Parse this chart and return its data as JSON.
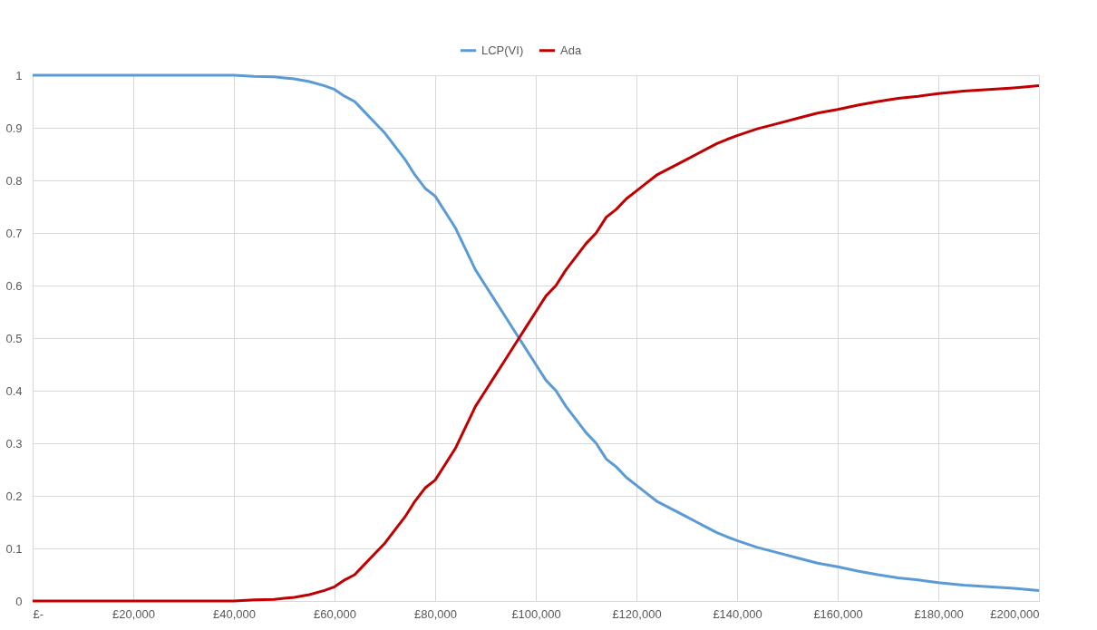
{
  "chart_data": {
    "type": "line",
    "x": [
      0,
      40000,
      44000,
      48000,
      50000,
      52000,
      55000,
      58000,
      60000,
      62000,
      64000,
      66000,
      68000,
      70000,
      72000,
      74000,
      76000,
      78000,
      80000,
      82000,
      84000,
      86000,
      88000,
      90000,
      92000,
      94000,
      96000,
      98000,
      100000,
      102000,
      104000,
      106000,
      108000,
      110000,
      112000,
      114000,
      116000,
      118000,
      120000,
      122000,
      124000,
      126000,
      128000,
      130000,
      132000,
      134000,
      136000,
      138000,
      140000,
      144000,
      148000,
      152000,
      156000,
      160000,
      164000,
      168000,
      172000,
      176000,
      180000,
      185000,
      190000,
      195000,
      200000
    ],
    "series": [
      {
        "name": "LCP(VI)",
        "color": "#5b9bd5",
        "values": [
          1,
          1,
          0.998,
          0.997,
          0.995,
          0.993,
          0.988,
          0.98,
          0.973,
          0.96,
          0.95,
          0.93,
          0.91,
          0.89,
          0.865,
          0.84,
          0.81,
          0.785,
          0.77,
          0.74,
          0.71,
          0.67,
          0.63,
          0.6,
          0.57,
          0.54,
          0.51,
          0.48,
          0.45,
          0.42,
          0.4,
          0.37,
          0.345,
          0.32,
          0.3,
          0.27,
          0.255,
          0.235,
          0.22,
          0.205,
          0.19,
          0.18,
          0.17,
          0.16,
          0.15,
          0.14,
          0.13,
          0.122,
          0.115,
          0.102,
          0.092,
          0.082,
          0.072,
          0.065,
          0.057,
          0.05,
          0.044,
          0.04,
          0.035,
          0.03,
          0.027,
          0.024,
          0.02
        ]
      },
      {
        "name": "Ada",
        "color": "#c00000",
        "values": [
          0,
          0,
          0.002,
          0.003,
          0.005,
          0.007,
          0.012,
          0.02,
          0.027,
          0.04,
          0.05,
          0.07,
          0.09,
          0.11,
          0.135,
          0.16,
          0.19,
          0.215,
          0.23,
          0.26,
          0.29,
          0.33,
          0.37,
          0.4,
          0.43,
          0.46,
          0.49,
          0.52,
          0.55,
          0.58,
          0.6,
          0.63,
          0.655,
          0.68,
          0.7,
          0.73,
          0.745,
          0.765,
          0.78,
          0.795,
          0.81,
          0.82,
          0.83,
          0.84,
          0.85,
          0.86,
          0.87,
          0.878,
          0.885,
          0.898,
          0.908,
          0.918,
          0.928,
          0.935,
          0.943,
          0.95,
          0.956,
          0.96,
          0.965,
          0.97,
          0.973,
          0.976,
          0.98
        ]
      }
    ],
    "xlim": [
      0,
      200000
    ],
    "xticks": [
      {
        "value": 0,
        "label": "£-"
      },
      {
        "value": 20000,
        "label": "£20,000"
      },
      {
        "value": 40000,
        "label": "£40,000"
      },
      {
        "value": 60000,
        "label": "£60,000"
      },
      {
        "value": 80000,
        "label": "£80,000"
      },
      {
        "value": 100000,
        "label": "£100,000"
      },
      {
        "value": 120000,
        "label": "£120,000"
      },
      {
        "value": 140000,
        "label": "£140,000"
      },
      {
        "value": 160000,
        "label": "£160,000"
      },
      {
        "value": 180000,
        "label": "£180,000"
      },
      {
        "value": 200000,
        "label": "£200,000"
      }
    ],
    "ylim": [
      0,
      1
    ],
    "yticks": [
      0,
      0.1,
      0.2,
      0.3,
      0.4,
      0.5,
      0.6,
      0.7,
      0.8,
      0.9,
      1
    ],
    "grid": true,
    "legend": "top",
    "marker": "none",
    "line_style": "solid"
  }
}
